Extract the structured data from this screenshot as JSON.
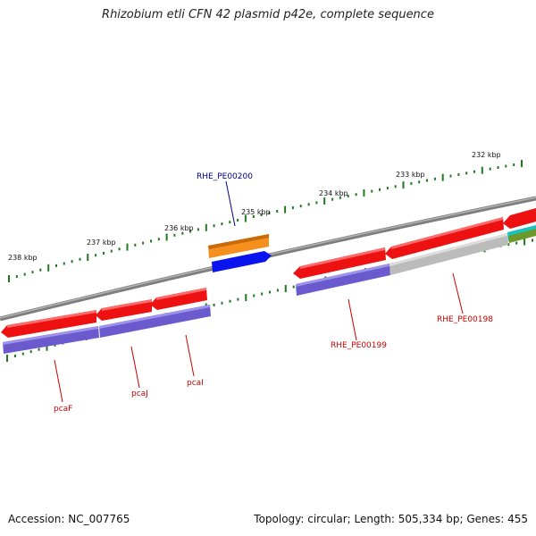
{
  "title": "Rhizobium etli CFN 42 plasmid p42e, complete sequence",
  "footer": {
    "accession": "Accession: NC_007765",
    "summary": "Topology: circular; Length: 505,334 bp; Genes: 455"
  },
  "colors": {
    "backbone": "#888888",
    "tick": "#1f7a1f",
    "gene_forward": "#ee1111",
    "cds_track": "#6a5acd",
    "gray_feature": "#bbbbbb",
    "orange_feature": "#f5901e",
    "blue_feature": "#0a14ee",
    "cyan_feature": "#19c2c2",
    "olive_feature": "#6b9a2a",
    "label_red": "#cc0000",
    "label_blue": "#00008b"
  },
  "map": {
    "ticks": [
      {
        "label": "238 kbp"
      },
      {
        "label": "237 kbp"
      },
      {
        "label": "236 kbp"
      },
      {
        "label": "235 kbp"
      },
      {
        "label": "234 kbp"
      },
      {
        "label": "233 kbp"
      },
      {
        "label": "232 kbp"
      }
    ],
    "gene_labels": [
      {
        "text": "RHE_PE00200",
        "color_key": "label_blue"
      },
      {
        "text": "RHE_PE00199",
        "color_key": "label_red"
      },
      {
        "text": "RHE_PE00198",
        "color_key": "label_red"
      },
      {
        "text": "pcaF",
        "color_key": "label_red"
      },
      {
        "text": "pcaJ",
        "color_key": "label_red"
      },
      {
        "text": "pcaI",
        "color_key": "label_red"
      }
    ]
  }
}
